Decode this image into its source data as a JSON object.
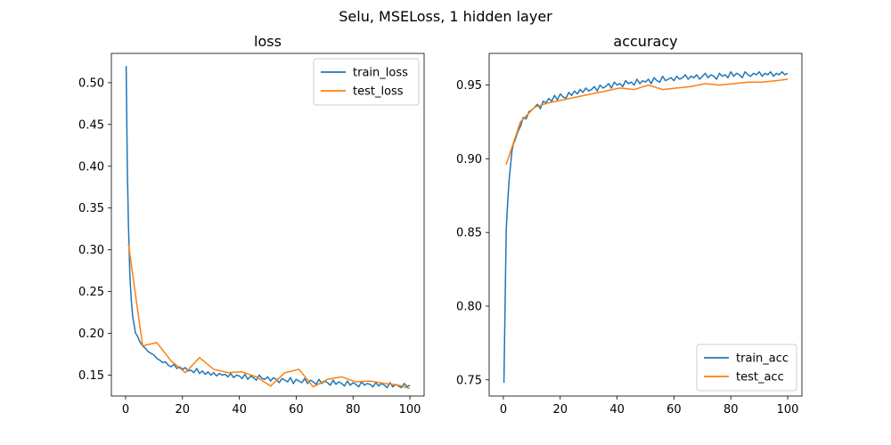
{
  "figure": {
    "suptitle": "Selu, MSELoss, 1 hidden layer"
  },
  "colors": {
    "train": "#1f77b4",
    "test": "#ff7f0e"
  },
  "chart_data": [
    {
      "type": "line",
      "title": "loss",
      "xlabel": "",
      "ylabel": "",
      "xlim": [
        -5,
        105
      ],
      "ylim": [
        0.125,
        0.535
      ],
      "xticks": [
        0,
        20,
        40,
        60,
        80,
        100
      ],
      "xtick_labels": [
        "0",
        "20",
        "40",
        "60",
        "80",
        "100"
      ],
      "yticks": [
        0.15,
        0.2,
        0.25,
        0.3,
        0.35,
        0.4,
        0.45,
        0.5
      ],
      "ytick_labels": [
        "0.15",
        "0.20",
        "0.25",
        "0.30",
        "0.35",
        "0.40",
        "0.45",
        "0.50"
      ],
      "legend": "top-right",
      "grid": false,
      "series": [
        {
          "name": "train_loss",
          "color": "#1f77b4",
          "x": [
            0.2,
            0.6,
            1.0,
            1.5,
            2,
            2.5,
            3,
            3.5,
            4,
            5,
            6,
            7,
            8,
            9,
            10,
            11,
            12,
            13,
            14,
            15,
            16,
            17,
            18,
            19,
            20,
            21,
            22,
            23,
            24,
            25,
            26,
            27,
            28,
            29,
            30,
            31,
            32,
            33,
            34,
            35,
            36,
            37,
            38,
            39,
            40,
            41,
            42,
            43,
            44,
            45,
            46,
            47,
            48,
            49,
            50,
            51,
            52,
            53,
            54,
            55,
            56,
            57,
            58,
            59,
            60,
            61,
            62,
            63,
            64,
            65,
            66,
            67,
            68,
            69,
            70,
            71,
            72,
            73,
            74,
            75,
            76,
            77,
            78,
            79,
            80,
            81,
            82,
            83,
            84,
            85,
            86,
            87,
            88,
            89,
            90,
            91,
            92,
            93,
            94,
            95,
            96,
            97,
            98,
            99,
            100
          ],
          "y": [
            0.52,
            0.4,
            0.33,
            0.27,
            0.24,
            0.22,
            0.21,
            0.2,
            0.198,
            0.19,
            0.185,
            0.182,
            0.178,
            0.176,
            0.174,
            0.17,
            0.168,
            0.165,
            0.166,
            0.162,
            0.16,
            0.163,
            0.158,
            0.16,
            0.157,
            0.159,
            0.155,
            0.156,
            0.153,
            0.158,
            0.152,
            0.155,
            0.151,
            0.154,
            0.15,
            0.153,
            0.149,
            0.152,
            0.15,
            0.151,
            0.148,
            0.152,
            0.147,
            0.15,
            0.149,
            0.146,
            0.151,
            0.145,
            0.149,
            0.147,
            0.144,
            0.15,
            0.146,
            0.145,
            0.148,
            0.143,
            0.147,
            0.145,
            0.141,
            0.146,
            0.144,
            0.142,
            0.147,
            0.14,
            0.145,
            0.143,
            0.141,
            0.146,
            0.14,
            0.144,
            0.142,
            0.139,
            0.145,
            0.14,
            0.143,
            0.141,
            0.138,
            0.144,
            0.139,
            0.142,
            0.14,
            0.137,
            0.143,
            0.138,
            0.141,
            0.139,
            0.136,
            0.142,
            0.138,
            0.14,
            0.139,
            0.136,
            0.141,
            0.137,
            0.14,
            0.138,
            0.135,
            0.141,
            0.136,
            0.139,
            0.137,
            0.135,
            0.14,
            0.136,
            0.138
          ]
        },
        {
          "name": "test_loss",
          "color": "#ff7f0e",
          "x": [
            1,
            6,
            11,
            16,
            21,
            26,
            31,
            36,
            41,
            46,
            51,
            56,
            61,
            66,
            71,
            76,
            81,
            86,
            91,
            96,
            100
          ],
          "y": [
            0.307,
            0.185,
            0.189,
            0.167,
            0.153,
            0.171,
            0.157,
            0.153,
            0.154,
            0.148,
            0.137,
            0.153,
            0.157,
            0.136,
            0.145,
            0.148,
            0.142,
            0.143,
            0.14,
            0.138,
            0.134
          ]
        }
      ]
    },
    {
      "type": "line",
      "title": "accuracy",
      "xlabel": "",
      "ylabel": "",
      "xlim": [
        -5,
        105
      ],
      "ylim": [
        0.739,
        0.9715
      ],
      "xticks": [
        0,
        20,
        40,
        60,
        80,
        100
      ],
      "xtick_labels": [
        "0",
        "20",
        "40",
        "60",
        "80",
        "100"
      ],
      "yticks": [
        0.75,
        0.8,
        0.85,
        0.9,
        0.95
      ],
      "ytick_labels": [
        "0.75",
        "0.80",
        "0.85",
        "0.90",
        "0.95"
      ],
      "legend": "bottom-right",
      "grid": false,
      "series": [
        {
          "name": "train_acc",
          "color": "#1f77b4",
          "x": [
            0.2,
            0.6,
            1.0,
            1.5,
            2,
            2.5,
            3,
            3.5,
            4,
            5,
            6,
            7,
            8,
            9,
            10,
            11,
            12,
            13,
            14,
            15,
            16,
            17,
            18,
            19,
            20,
            21,
            22,
            23,
            24,
            25,
            26,
            27,
            28,
            29,
            30,
            31,
            32,
            33,
            34,
            35,
            36,
            37,
            38,
            39,
            40,
            41,
            42,
            43,
            44,
            45,
            46,
            47,
            48,
            49,
            50,
            51,
            52,
            53,
            54,
            55,
            56,
            57,
            58,
            59,
            60,
            61,
            62,
            63,
            64,
            65,
            66,
            67,
            68,
            69,
            70,
            71,
            72,
            73,
            74,
            75,
            76,
            77,
            78,
            79,
            80,
            81,
            82,
            83,
            84,
            85,
            86,
            87,
            88,
            89,
            90,
            91,
            92,
            93,
            94,
            95,
            96,
            97,
            98,
            99,
            100
          ],
          "y": [
            0.748,
            0.8,
            0.852,
            0.87,
            0.885,
            0.895,
            0.905,
            0.91,
            0.912,
            0.918,
            0.922,
            0.928,
            0.927,
            0.932,
            0.933,
            0.935,
            0.937,
            0.934,
            0.939,
            0.938,
            0.941,
            0.939,
            0.943,
            0.94,
            0.944,
            0.942,
            0.941,
            0.945,
            0.943,
            0.946,
            0.944,
            0.947,
            0.945,
            0.948,
            0.946,
            0.947,
            0.949,
            0.946,
            0.95,
            0.948,
            0.949,
            0.951,
            0.948,
            0.952,
            0.95,
            0.951,
            0.949,
            0.953,
            0.951,
            0.952,
            0.95,
            0.954,
            0.951,
            0.953,
            0.952,
            0.954,
            0.951,
            0.955,
            0.953,
            0.952,
            0.956,
            0.953,
            0.954,
            0.955,
            0.953,
            0.956,
            0.954,
            0.955,
            0.957,
            0.954,
            0.956,
            0.955,
            0.957,
            0.954,
            0.956,
            0.958,
            0.955,
            0.957,
            0.956,
            0.954,
            0.958,
            0.956,
            0.957,
            0.955,
            0.959,
            0.956,
            0.958,
            0.957,
            0.955,
            0.959,
            0.957,
            0.956,
            0.958,
            0.957,
            0.959,
            0.956,
            0.958,
            0.957,
            0.959,
            0.956,
            0.958,
            0.957,
            0.959,
            0.957,
            0.958
          ]
        },
        {
          "name": "test_acc",
          "color": "#ff7f0e",
          "x": [
            1,
            6,
            11,
            16,
            21,
            26,
            31,
            36,
            41,
            46,
            51,
            56,
            61,
            66,
            71,
            76,
            81,
            86,
            91,
            96,
            100
          ],
          "y": [
            0.896,
            0.925,
            0.935,
            0.938,
            0.94,
            0.942,
            0.944,
            0.946,
            0.948,
            0.947,
            0.95,
            0.947,
            0.948,
            0.949,
            0.951,
            0.95,
            0.951,
            0.952,
            0.952,
            0.953,
            0.954
          ]
        }
      ]
    }
  ]
}
